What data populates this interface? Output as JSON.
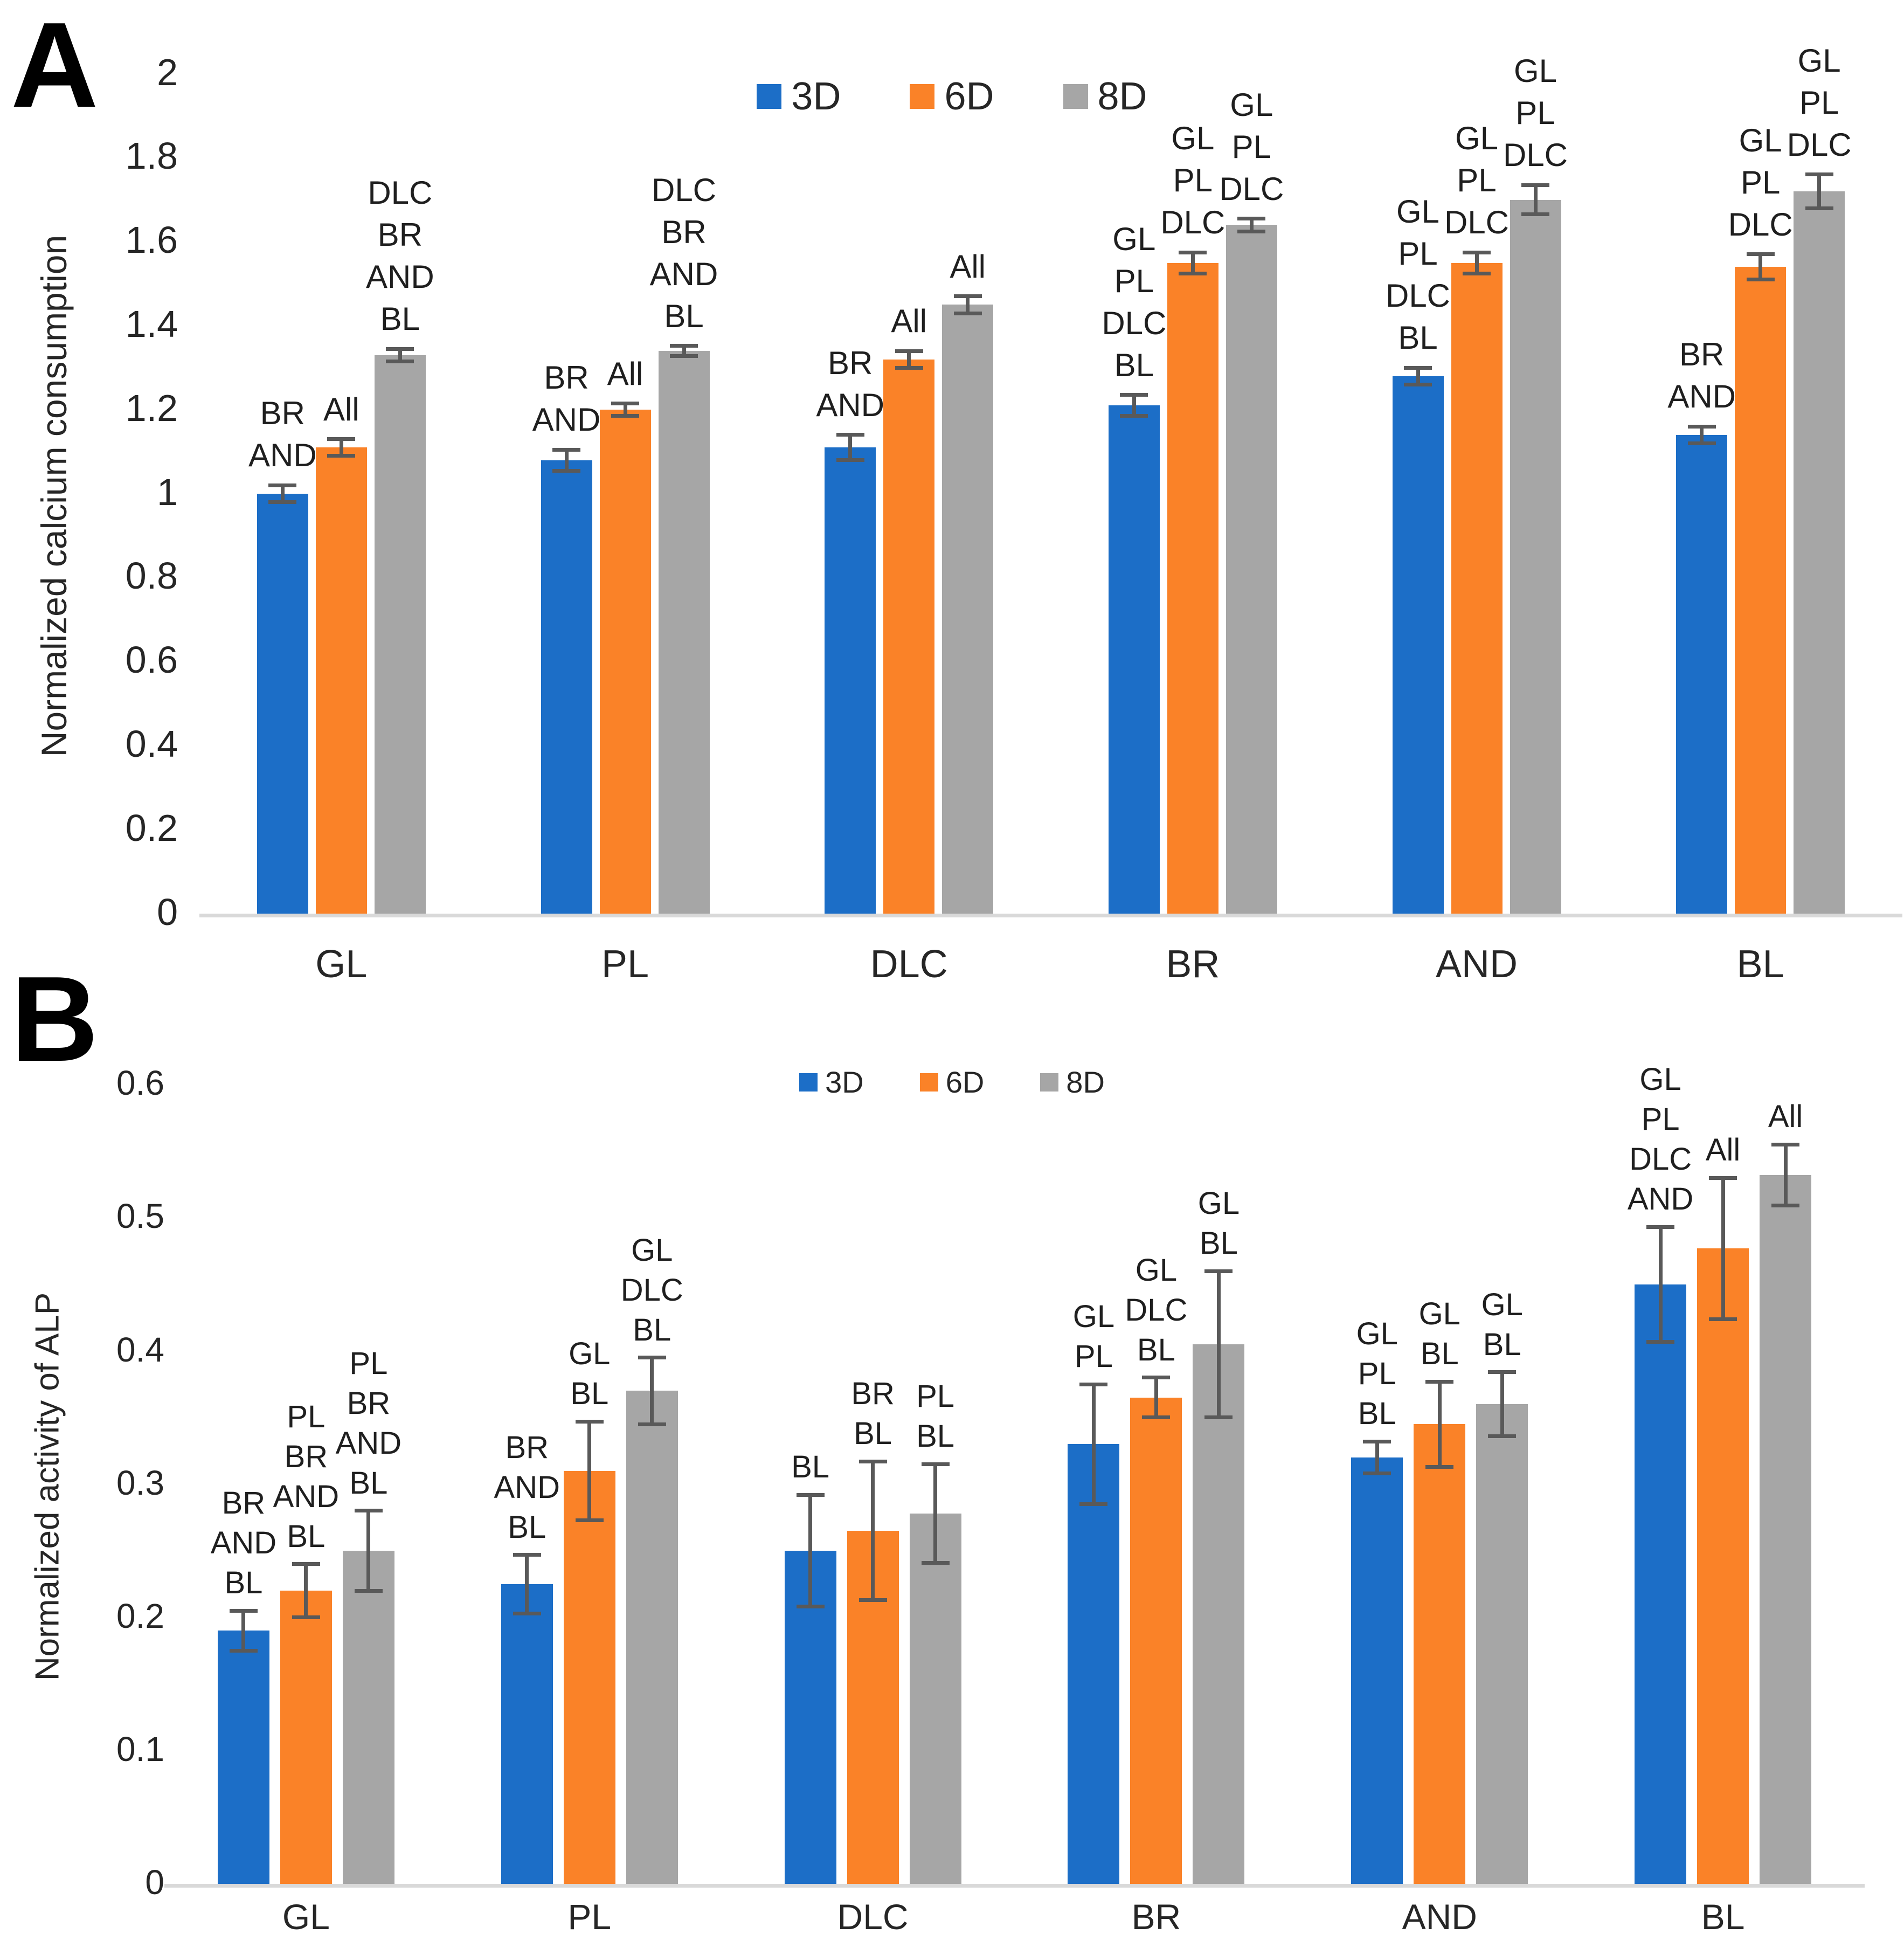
{
  "figure_title": "",
  "chart_data": [
    {
      "type": "bar",
      "panel_label": "A",
      "y_axis_label": "Normalized calcium consumption",
      "xlabel": "",
      "ylim": [
        0,
        2
      ],
      "y_tick_step": 0.2,
      "y_tick_labels": [
        "2",
        "1.8",
        "1.6",
        "1.4",
        "1.2",
        "1",
        "0.8",
        "0.6",
        "0.4",
        "0.2",
        "0"
      ],
      "grid": false,
      "legend_position": "top-center",
      "legend": [
        "3D",
        "6D",
        "8D"
      ],
      "categories": [
        "GL",
        "PL",
        "DLC",
        "BR",
        "AND",
        "BL"
      ],
      "series": [
        {
          "name": "3D",
          "color": "#1C6EC7",
          "values": [
            1.0,
            1.08,
            1.11,
            1.21,
            1.28,
            1.14
          ],
          "errors": [
            0.02,
            0.025,
            0.03,
            0.025,
            0.02,
            0.02
          ],
          "annotations": [
            "BR\nAND",
            "BR\nAND",
            "BR\nAND",
            "GL\nPL\nDLC\nBL",
            "GL\nPL\nDLC\nBL",
            "BR\nAND"
          ]
        },
        {
          "name": "6D",
          "color": "#FA8228",
          "values": [
            1.11,
            1.2,
            1.32,
            1.55,
            1.55,
            1.54
          ],
          "errors": [
            0.02,
            0.015,
            0.02,
            0.025,
            0.025,
            0.03
          ],
          "annotations": [
            "All",
            "All",
            "All",
            "GL\nPL\nDLC",
            "GL\nPL\nDLC",
            "GL\nPL\nDLC"
          ]
        },
        {
          "name": "8D",
          "color": "#A6A6A6",
          "values": [
            1.33,
            1.34,
            1.45,
            1.64,
            1.7,
            1.72
          ],
          "errors": [
            0.015,
            0.012,
            0.02,
            0.015,
            0.035,
            0.04
          ],
          "annotations": [
            "DLC\nBR\nAND\nBL",
            "DLC\nBR\nAND\nBL",
            "All",
            "GL\nPL\nDLC",
            "GL\nPL\nDLC",
            "GL\nPL\nDLC"
          ]
        }
      ]
    },
    {
      "type": "bar",
      "panel_label": "B",
      "y_axis_label": "Normalized activity of ALP",
      "xlabel": "",
      "ylim": [
        0,
        0.6
      ],
      "y_tick_step": 0.1,
      "y_tick_labels": [
        "0.6",
        "0.5",
        "0.4",
        "0.3",
        "0.2",
        "0.1",
        "0"
      ],
      "grid": false,
      "legend_position": "top-center",
      "legend": [
        "3D",
        "6D",
        "8D"
      ],
      "categories": [
        "GL",
        "PL",
        "DLC",
        "BR",
        "AND",
        "BL"
      ],
      "series": [
        {
          "name": "3D",
          "color": "#1C6EC7",
          "values": [
            0.19,
            0.225,
            0.25,
            0.33,
            0.32,
            0.45
          ],
          "errors": [
            0.015,
            0.022,
            0.042,
            0.045,
            0.012,
            0.043
          ],
          "annotations": [
            "BR\nAND\nBL",
            "BR\nAND\nBL",
            "BL",
            "GL\nPL",
            "GL\nPL\nBL",
            "GL\nPL\nDLC\nAND"
          ]
        },
        {
          "name": "6D",
          "color": "#FA8228",
          "values": [
            0.22,
            0.31,
            0.265,
            0.365,
            0.345,
            0.477
          ],
          "errors": [
            0.02,
            0.037,
            0.052,
            0.015,
            0.032,
            0.053
          ],
          "annotations": [
            "PL\nBR\nAND\nBL",
            "GL\nBL",
            "BR\nBL",
            "GL\nDLC\nBL",
            "GL\nBL",
            "All"
          ]
        },
        {
          "name": "8D",
          "color": "#A6A6A6",
          "values": [
            0.25,
            0.37,
            0.278,
            0.405,
            0.36,
            0.532
          ],
          "errors": [
            0.03,
            0.025,
            0.037,
            0.055,
            0.024,
            0.023
          ],
          "annotations": [
            "PL\nBR\nAND\nBL",
            "GL\nDLC\nBL",
            "PL\nBL",
            "GL\nBL",
            "GL\nBL",
            "All"
          ]
        }
      ]
    }
  ],
  "colors": {
    "series_3d": "#1C6EC7",
    "series_6d": "#FA8228",
    "series_8d": "#A6A6A6",
    "error_bar": "#595959",
    "axis_line": "#D9D9D9",
    "text": "#262626"
  }
}
